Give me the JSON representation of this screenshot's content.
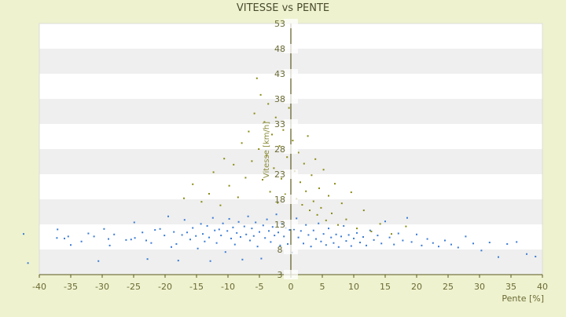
{
  "chart_data": {
    "type": "scatter",
    "title": "VITESSE vs PENTE",
    "xlabel": "Pente [%]",
    "ylabel": "Vitesse [km/h]",
    "xlim": [
      -40,
      40
    ],
    "ylim": [
      3,
      53
    ],
    "x_ticks": [
      -40,
      -35,
      -30,
      -25,
      -20,
      -15,
      -10,
      -5,
      0,
      5,
      10,
      15,
      20,
      25,
      30,
      35,
      40
    ],
    "y_ticks": [
      3,
      8,
      13,
      18,
      23,
      28,
      33,
      38,
      43,
      48,
      53
    ],
    "grid": "horizontal bands",
    "colors": {
      "background": "#eef2cf",
      "band_light": "#ffffff",
      "band_dark": "#efefef",
      "axis": "#5a5a1e",
      "blue_series": "#3a7bd5",
      "olive_series": "#8a8a12"
    },
    "series": [
      {
        "color": "#3a7bd5",
        "points": [
          [
            -42.5,
            11.1
          ],
          [
            -41.8,
            5.3
          ],
          [
            -37.2,
            10.3
          ],
          [
            -37.1,
            12.0
          ],
          [
            -36.0,
            10.2
          ],
          [
            -35.4,
            10.6
          ],
          [
            -35.0,
            8.9
          ],
          [
            -33.3,
            9.6
          ],
          [
            -32.2,
            11.2
          ],
          [
            -31.3,
            10.6
          ],
          [
            -30.6,
            5.7
          ],
          [
            -29.7,
            12.1
          ],
          [
            -29.0,
            10.1
          ],
          [
            -28.8,
            8.8
          ],
          [
            -28.1,
            11.0
          ],
          [
            -26.2,
            9.9
          ],
          [
            -25.4,
            10.0
          ],
          [
            -24.9,
            13.4
          ],
          [
            -24.8,
            10.3
          ],
          [
            -23.6,
            11.4
          ],
          [
            -23.0,
            9.8
          ],
          [
            -22.8,
            6.1
          ],
          [
            -22.2,
            9.3
          ],
          [
            -21.6,
            11.9
          ],
          [
            -20.8,
            12.1
          ],
          [
            -20.1,
            10.8
          ],
          [
            -19.5,
            14.6
          ],
          [
            -19.0,
            8.5
          ],
          [
            -18.6,
            11.5
          ],
          [
            -18.2,
            9.1
          ],
          [
            -17.9,
            5.8
          ],
          [
            -17.3,
            10.9
          ],
          [
            -16.9,
            13.9
          ],
          [
            -16.5,
            11.4
          ],
          [
            -16.0,
            10.0
          ],
          [
            -15.6,
            12.3
          ],
          [
            -15.1,
            10.7
          ],
          [
            -14.8,
            8.2
          ],
          [
            -14.3,
            13.1
          ],
          [
            -14.0,
            11.1
          ],
          [
            -13.7,
            9.6
          ],
          [
            -13.3,
            12.7
          ],
          [
            -13.0,
            10.4
          ],
          [
            -12.8,
            5.7
          ],
          [
            -12.4,
            14.3
          ],
          [
            -12.1,
            11.8
          ],
          [
            -11.8,
            9.3
          ],
          [
            -11.4,
            12.0
          ],
          [
            -11.1,
            10.8
          ],
          [
            -10.8,
            13.2
          ],
          [
            -10.4,
            7.5
          ],
          [
            -10.1,
            11.7
          ],
          [
            -9.8,
            14.1
          ],
          [
            -9.5,
            10.2
          ],
          [
            -9.2,
            12.4
          ],
          [
            -8.9,
            9.0
          ],
          [
            -8.6,
            11.3
          ],
          [
            -8.3,
            13.5
          ],
          [
            -8.0,
            10.5
          ],
          [
            -7.7,
            6.0
          ],
          [
            -7.4,
            12.6
          ],
          [
            -7.1,
            11.0
          ],
          [
            -6.8,
            14.6
          ],
          [
            -6.5,
            9.8
          ],
          [
            -6.2,
            12.2
          ],
          [
            -5.9,
            10.7
          ],
          [
            -5.6,
            13.4
          ],
          [
            -5.3,
            8.6
          ],
          [
            -5.0,
            11.5
          ],
          [
            -4.7,
            6.2
          ],
          [
            -4.4,
            12.8
          ],
          [
            -4.1,
            10.3
          ],
          [
            -3.8,
            14.0
          ],
          [
            -3.5,
            11.7
          ],
          [
            -3.2,
            9.5
          ],
          [
            -2.9,
            12.5
          ],
          [
            -2.6,
            10.8
          ],
          [
            -2.3,
            15.0
          ],
          [
            -2.0,
            11.4
          ],
          [
            -1.7,
            8.8
          ],
          [
            -1.4,
            13.1
          ],
          [
            -1.1,
            10.6
          ],
          [
            -0.8,
            12.3
          ],
          [
            -0.5,
            9.1
          ],
          [
            -0.2,
            11.9
          ],
          [
            0.2,
            7.4
          ],
          [
            0.5,
            12.0
          ],
          [
            0.9,
            14.2
          ],
          [
            1.2,
            10.4
          ],
          [
            1.6,
            11.7
          ],
          [
            2.0,
            9.2
          ],
          [
            2.4,
            12.9
          ],
          [
            2.8,
            10.9
          ],
          [
            3.2,
            8.6
          ],
          [
            3.6,
            11.8
          ],
          [
            4.0,
            10.1
          ],
          [
            4.4,
            13.2
          ],
          [
            4.8,
            9.6
          ],
          [
            5.2,
            11.1
          ],
          [
            5.6,
            8.9
          ],
          [
            6.0,
            12.2
          ],
          [
            6.4,
            10.4
          ],
          [
            6.8,
            9.3
          ],
          [
            7.2,
            11.0
          ],
          [
            7.6,
            8.5
          ],
          [
            8.0,
            10.6
          ],
          [
            8.4,
            12.7
          ],
          [
            8.8,
            9.7
          ],
          [
            9.2,
            10.9
          ],
          [
            9.6,
            8.7
          ],
          [
            10.0,
            10.2
          ],
          [
            10.5,
            11.3
          ],
          [
            11.0,
            9.4
          ],
          [
            11.5,
            10.5
          ],
          [
            12.0,
            8.8
          ],
          [
            12.6,
            11.8
          ],
          [
            13.2,
            9.9
          ],
          [
            13.8,
            10.8
          ],
          [
            14.4,
            9.2
          ],
          [
            15.0,
            13.6
          ],
          [
            15.7,
            10.4
          ],
          [
            16.4,
            9.0
          ],
          [
            17.1,
            11.2
          ],
          [
            17.8,
            9.8
          ],
          [
            18.5,
            14.3
          ],
          [
            19.2,
            9.5
          ],
          [
            20.0,
            11.0
          ],
          [
            20.8,
            8.8
          ],
          [
            21.7,
            10.1
          ],
          [
            22.6,
            9.3
          ],
          [
            23.5,
            8.6
          ],
          [
            24.5,
            9.8
          ],
          [
            25.5,
            9.0
          ],
          [
            26.6,
            8.4
          ],
          [
            27.8,
            10.6
          ],
          [
            29.0,
            9.2
          ],
          [
            30.3,
            7.8
          ],
          [
            31.6,
            9.4
          ],
          [
            33.0,
            6.5
          ],
          [
            34.4,
            9.1
          ],
          [
            35.9,
            9.5
          ],
          [
            37.5,
            7.1
          ],
          [
            38.9,
            6.6
          ]
        ]
      },
      {
        "color": "#8a8a12",
        "points": [
          [
            -17.0,
            18.2
          ],
          [
            -15.6,
            21.0
          ],
          [
            -14.2,
            17.5
          ],
          [
            -13.0,
            19.1
          ],
          [
            -12.3,
            23.4
          ],
          [
            -11.2,
            16.8
          ],
          [
            -10.6,
            26.1
          ],
          [
            -9.8,
            20.7
          ],
          [
            -9.1,
            24.9
          ],
          [
            -8.4,
            18.4
          ],
          [
            -7.8,
            29.2
          ],
          [
            -7.2,
            22.3
          ],
          [
            -6.7,
            31.5
          ],
          [
            -6.2,
            25.6
          ],
          [
            -5.8,
            35.1
          ],
          [
            -5.4,
            42.1
          ],
          [
            -5.1,
            28.0
          ],
          [
            -4.8,
            38.8
          ],
          [
            -4.5,
            21.9
          ],
          [
            -4.2,
            33.4
          ],
          [
            -3.9,
            26.7
          ],
          [
            -3.6,
            37.0
          ],
          [
            -3.3,
            19.5
          ],
          [
            -3.0,
            30.9
          ],
          [
            -2.7,
            24.2
          ],
          [
            -2.4,
            34.3
          ],
          [
            -2.1,
            17.3
          ],
          [
            -1.8,
            28.6
          ],
          [
            -1.5,
            22.1
          ],
          [
            -1.2,
            31.8
          ],
          [
            -0.9,
            19.0
          ],
          [
            -0.6,
            26.4
          ],
          [
            -0.3,
            36.2
          ],
          [
            0.3,
            29.7
          ],
          [
            0.6,
            23.6
          ],
          [
            0.9,
            18.1
          ],
          [
            1.2,
            27.3
          ],
          [
            1.5,
            21.4
          ],
          [
            1.8,
            16.9
          ],
          [
            2.1,
            25.1
          ],
          [
            2.4,
            19.6
          ],
          [
            2.7,
            30.6
          ],
          [
            3.0,
            15.8
          ],
          [
            3.3,
            22.8
          ],
          [
            3.6,
            17.6
          ],
          [
            3.9,
            26.0
          ],
          [
            4.2,
            14.9
          ],
          [
            4.5,
            20.2
          ],
          [
            4.8,
            16.3
          ],
          [
            5.2,
            23.9
          ],
          [
            5.6,
            13.8
          ],
          [
            6.0,
            18.7
          ],
          [
            6.5,
            15.2
          ],
          [
            7.0,
            21.1
          ],
          [
            7.5,
            12.9
          ],
          [
            8.1,
            17.2
          ],
          [
            8.8,
            14.0
          ],
          [
            9.6,
            19.4
          ],
          [
            10.5,
            12.2
          ],
          [
            11.6,
            15.8
          ],
          [
            12.8,
            11.6
          ],
          [
            14.2,
            13.1
          ],
          [
            16.0,
            11.1
          ],
          [
            18.3,
            12.6
          ]
        ]
      }
    ]
  }
}
